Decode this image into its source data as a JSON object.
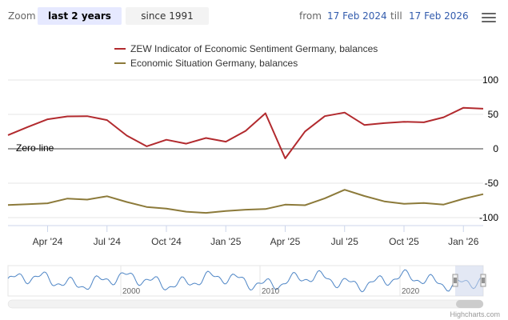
{
  "toolbar": {
    "zoom_label": "Zoom",
    "buttons": [
      {
        "label": "last 2 years",
        "active": true
      },
      {
        "label": "since 1991",
        "active": false
      }
    ],
    "from_label": "from",
    "from_value": "17 Feb 2024",
    "till_label": "till",
    "till_value": "17 Feb 2026",
    "menu_icon": "hamburger-menu-icon"
  },
  "colors": {
    "sentiment": "#b22a2e",
    "situation": "#8c7a3a",
    "navigator": "#4f86c6",
    "navigator_mask": "#ccd6eb"
  },
  "chart_data": {
    "type": "line",
    "x": [
      "2024-02",
      "2024-03",
      "2024-04",
      "2024-05",
      "2024-06",
      "2024-07",
      "2024-08",
      "2024-09",
      "2024-10",
      "2024-11",
      "2024-12",
      "2025-01",
      "2025-02",
      "2025-03",
      "2025-04",
      "2025-05",
      "2025-06",
      "2025-07",
      "2025-08",
      "2025-09",
      "2025-10",
      "2025-11",
      "2025-12",
      "2026-01",
      "2026-02"
    ],
    "series": [
      {
        "name": "ZEW Indicator of Economic Sentiment Germany, balances",
        "values": [
          19.9,
          31.7,
          42.9,
          47.1,
          47.5,
          41.8,
          19.2,
          3.6,
          13.1,
          7.4,
          15.7,
          10.3,
          26.0,
          51.6,
          -14.0,
          25.2,
          47.5,
          52.7,
          34.7,
          37.3,
          39.3,
          38.5,
          45.8,
          59.6,
          58.3
        ]
      },
      {
        "name": "Economic Situation Germany, balances",
        "values": [
          -81.7,
          -80.5,
          -79.2,
          -72.3,
          -73.8,
          -68.9,
          -77.3,
          -84.5,
          -86.9,
          -91.4,
          -93.1,
          -90.4,
          -88.5,
          -87.6,
          -81.2,
          -82.0,
          -72.0,
          -59.5,
          -68.6,
          -76.4,
          -80.0,
          -78.7,
          -81.0,
          -72.7,
          -65.9
        ]
      }
    ],
    "ylim": [
      -100,
      100
    ],
    "yticks": [
      "100",
      "50",
      "0",
      "-50",
      "-100"
    ],
    "xticks": [
      "Apr '24",
      "Jul '24",
      "Oct '24",
      "Jan '25",
      "Apr '25",
      "Jul '25",
      "Oct '25",
      "Jan '26"
    ],
    "plotline_label": "Zero-line",
    "navigator_labels": [
      "2000",
      "2010",
      "2020"
    ],
    "credits": "Highcharts.com"
  }
}
